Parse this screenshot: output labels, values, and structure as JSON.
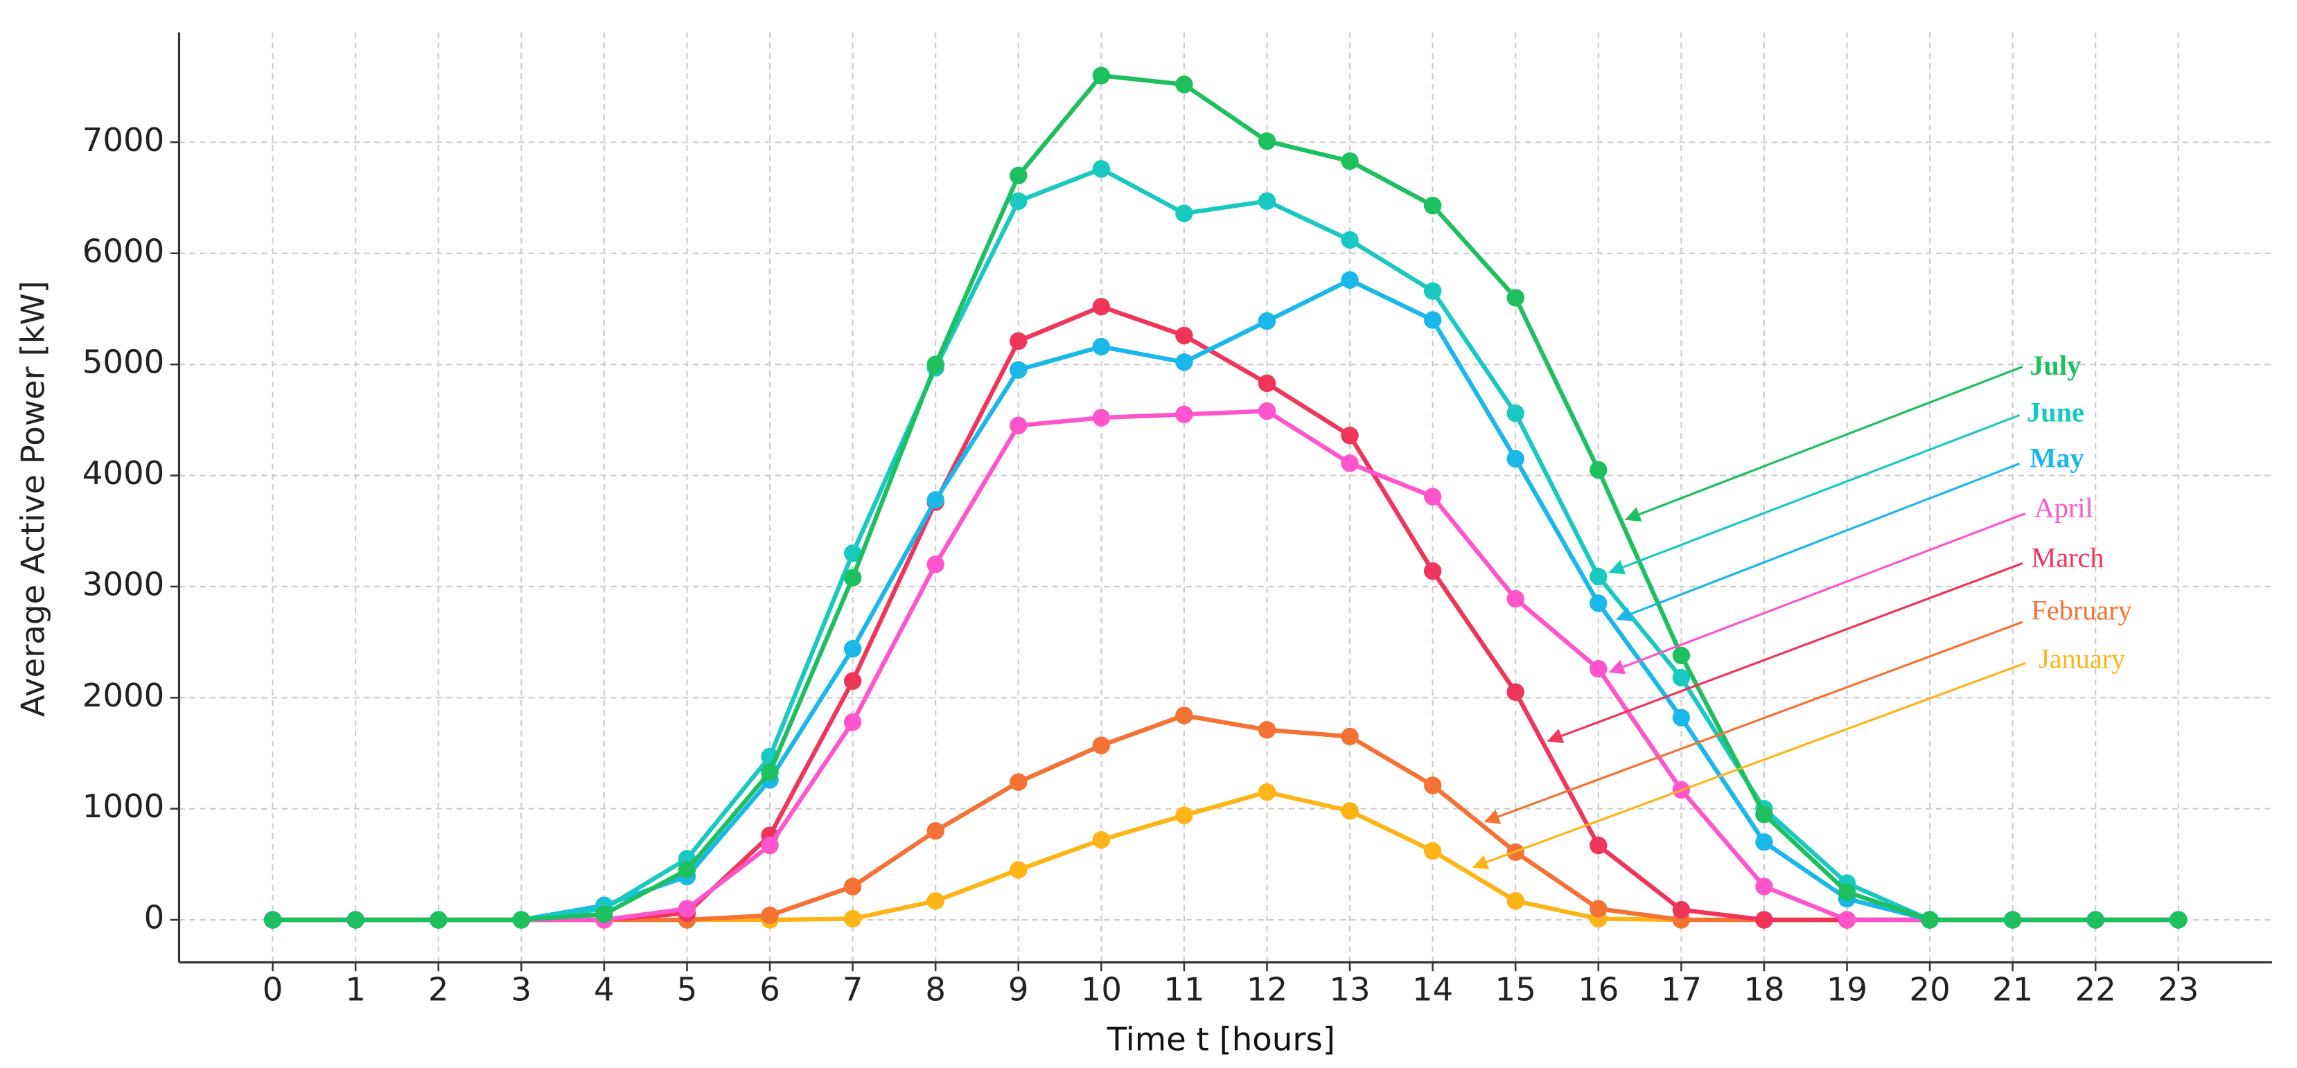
{
  "chart_data": {
    "type": "line",
    "xlabel": "Time t [hours]",
    "ylabel": "Average Active Power [kW]",
    "x": [
      0,
      1,
      2,
      3,
      4,
      5,
      6,
      7,
      8,
      9,
      10,
      11,
      12,
      13,
      14,
      15,
      16,
      17,
      18,
      19,
      20,
      21,
      22,
      23
    ],
    "xlim": [
      -1.13,
      24.13
    ],
    "xticks": [
      0,
      1,
      2,
      3,
      4,
      5,
      6,
      7,
      8,
      9,
      10,
      11,
      12,
      13,
      14,
      15,
      16,
      17,
      18,
      19,
      20,
      21,
      22,
      23
    ],
    "ylim": [
      -383,
      7990
    ],
    "yticks": [
      0,
      1000,
      2000,
      3000,
      4000,
      5000,
      6000,
      7000
    ],
    "grid": true,
    "series": [
      {
        "name": "January",
        "color": "#fdb417",
        "values": [
          0,
          0,
          0,
          0,
          0,
          0,
          0,
          10,
          170,
          450,
          720,
          940,
          1150,
          980,
          620,
          170,
          10,
          0,
          0,
          0,
          0,
          0,
          0,
          0
        ]
      },
      {
        "name": "February",
        "color": "#f37234",
        "values": [
          0,
          0,
          0,
          0,
          0,
          0,
          40,
          300,
          800,
          1240,
          1570,
          1840,
          1710,
          1650,
          1210,
          610,
          100,
          0,
          0,
          0,
          0,
          0,
          0,
          0
        ]
      },
      {
        "name": "March",
        "color": "#f0355a",
        "values": [
          0,
          0,
          0,
          0,
          0,
          60,
          760,
          2150,
          3760,
          5210,
          5520,
          5260,
          4830,
          4360,
          3140,
          2050,
          670,
          90,
          0,
          0,
          0,
          0,
          0,
          0
        ]
      },
      {
        "name": "April",
        "color": "#ff55cc",
        "values": [
          0,
          0,
          0,
          0,
          0,
          100,
          670,
          1780,
          3200,
          4450,
          4520,
          4550,
          4580,
          4110,
          3810,
          2890,
          2260,
          1170,
          300,
          0,
          0,
          0,
          0,
          0
        ]
      },
      {
        "name": "May",
        "color": "#1ab8e8",
        "values": [
          0,
          0,
          0,
          0,
          130,
          390,
          1260,
          2440,
          3780,
          4950,
          5160,
          5020,
          5390,
          5760,
          5400,
          4150,
          2850,
          1820,
          700,
          190,
          0,
          0,
          0,
          0
        ]
      },
      {
        "name": "June",
        "color": "#19c9c0",
        "values": [
          0,
          0,
          0,
          0,
          100,
          550,
          1470,
          3300,
          4970,
          6470,
          6760,
          6360,
          6470,
          6120,
          5660,
          4560,
          3090,
          2180,
          1000,
          330,
          0,
          0,
          0,
          0
        ]
      },
      {
        "name": "July",
        "color": "#1dbf5f",
        "values": [
          0,
          0,
          0,
          0,
          50,
          450,
          1330,
          3080,
          5000,
          6700,
          7600,
          7520,
          7010,
          6830,
          6430,
          5600,
          4050,
          2380,
          950,
          250,
          0,
          0,
          0,
          0
        ]
      }
    ]
  }
}
